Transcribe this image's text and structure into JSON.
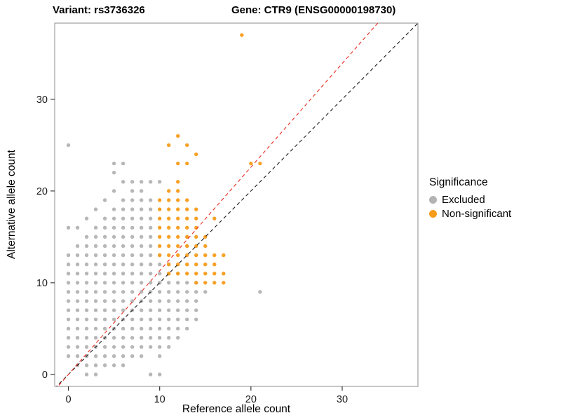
{
  "chart_data": {
    "type": "scatter",
    "title_left": "Variant: rs3736326",
    "title_right": "Gene: CTR9 (ENSG00000198730)",
    "xlabel": "Reference allele count",
    "ylabel": "Alternative allele count",
    "xlim": [
      -1.5,
      38.3
    ],
    "ylim": [
      -1.3,
      38.3
    ],
    "x_ticks": [
      0,
      10,
      20,
      30
    ],
    "y_ticks": [
      0,
      10,
      20,
      30
    ],
    "grid": false,
    "legend": {
      "title": "Significance",
      "position": "right"
    },
    "series": [
      {
        "name": "Excluded",
        "color": "#b3b3b3",
        "points": [
          [
            0,
            2
          ],
          [
            0,
            3
          ],
          [
            0,
            4
          ],
          [
            0,
            5
          ],
          [
            0,
            6
          ],
          [
            0,
            7
          ],
          [
            0,
            8
          ],
          [
            0,
            9
          ],
          [
            0,
            10
          ],
          [
            0,
            11
          ],
          [
            0,
            12
          ],
          [
            0,
            13
          ],
          [
            0,
            16
          ],
          [
            0,
            25
          ],
          [
            1,
            1
          ],
          [
            1,
            2
          ],
          [
            1,
            3
          ],
          [
            1,
            4
          ],
          [
            1,
            5
          ],
          [
            1,
            6
          ],
          [
            1,
            7
          ],
          [
            1,
            8
          ],
          [
            1,
            9
          ],
          [
            1,
            10
          ],
          [
            1,
            11
          ],
          [
            1,
            12
          ],
          [
            1,
            13
          ],
          [
            1,
            14
          ],
          [
            1,
            16
          ],
          [
            2,
            0
          ],
          [
            2,
            1
          ],
          [
            2,
            2
          ],
          [
            2,
            3
          ],
          [
            2,
            4
          ],
          [
            2,
            5
          ],
          [
            2,
            6
          ],
          [
            2,
            7
          ],
          [
            2,
            8
          ],
          [
            2,
            9
          ],
          [
            2,
            10
          ],
          [
            2,
            11
          ],
          [
            2,
            12
          ],
          [
            2,
            13
          ],
          [
            2,
            14
          ],
          [
            2,
            15
          ],
          [
            2,
            17
          ],
          [
            3,
            0
          ],
          [
            3,
            1
          ],
          [
            3,
            2
          ],
          [
            3,
            3
          ],
          [
            3,
            4
          ],
          [
            3,
            5
          ],
          [
            3,
            6
          ],
          [
            3,
            7
          ],
          [
            3,
            8
          ],
          [
            3,
            9
          ],
          [
            3,
            10
          ],
          [
            3,
            11
          ],
          [
            3,
            12
          ],
          [
            3,
            13
          ],
          [
            3,
            14
          ],
          [
            3,
            15
          ],
          [
            3,
            16
          ],
          [
            3,
            18
          ],
          [
            4,
            1
          ],
          [
            4,
            2
          ],
          [
            4,
            3
          ],
          [
            4,
            4
          ],
          [
            4,
            5
          ],
          [
            4,
            6
          ],
          [
            4,
            7
          ],
          [
            4,
            8
          ],
          [
            4,
            9
          ],
          [
            4,
            10
          ],
          [
            4,
            11
          ],
          [
            4,
            12
          ],
          [
            4,
            13
          ],
          [
            4,
            14
          ],
          [
            4,
            15
          ],
          [
            4,
            16
          ],
          [
            4,
            17
          ],
          [
            4,
            19
          ],
          [
            5,
            1
          ],
          [
            5,
            2
          ],
          [
            5,
            3
          ],
          [
            5,
            4
          ],
          [
            5,
            5
          ],
          [
            5,
            6
          ],
          [
            5,
            7
          ],
          [
            5,
            8
          ],
          [
            5,
            9
          ],
          [
            5,
            10
          ],
          [
            5,
            11
          ],
          [
            5,
            12
          ],
          [
            5,
            13
          ],
          [
            5,
            14
          ],
          [
            5,
            15
          ],
          [
            5,
            16
          ],
          [
            5,
            17
          ],
          [
            5,
            18
          ],
          [
            5,
            20
          ],
          [
            5,
            22
          ],
          [
            5,
            23
          ],
          [
            6,
            1
          ],
          [
            6,
            2
          ],
          [
            6,
            3
          ],
          [
            6,
            4
          ],
          [
            6,
            5
          ],
          [
            6,
            6
          ],
          [
            6,
            7
          ],
          [
            6,
            8
          ],
          [
            6,
            9
          ],
          [
            6,
            10
          ],
          [
            6,
            11
          ],
          [
            6,
            12
          ],
          [
            6,
            13
          ],
          [
            6,
            14
          ],
          [
            6,
            15
          ],
          [
            6,
            16
          ],
          [
            6,
            17
          ],
          [
            6,
            18
          ],
          [
            6,
            19
          ],
          [
            6,
            21
          ],
          [
            6,
            23
          ],
          [
            7,
            2
          ],
          [
            7,
            3
          ],
          [
            7,
            4
          ],
          [
            7,
            5
          ],
          [
            7,
            6
          ],
          [
            7,
            7
          ],
          [
            7,
            8
          ],
          [
            7,
            9
          ],
          [
            7,
            10
          ],
          [
            7,
            11
          ],
          [
            7,
            12
          ],
          [
            7,
            13
          ],
          [
            7,
            14
          ],
          [
            7,
            15
          ],
          [
            7,
            16
          ],
          [
            7,
            17
          ],
          [
            7,
            18
          ],
          [
            7,
            19
          ],
          [
            7,
            20
          ],
          [
            7,
            21
          ],
          [
            8,
            2
          ],
          [
            8,
            3
          ],
          [
            8,
            4
          ],
          [
            8,
            5
          ],
          [
            8,
            6
          ],
          [
            8,
            7
          ],
          [
            8,
            8
          ],
          [
            8,
            9
          ],
          [
            8,
            10
          ],
          [
            8,
            11
          ],
          [
            8,
            12
          ],
          [
            8,
            13
          ],
          [
            8,
            14
          ],
          [
            8,
            15
          ],
          [
            8,
            16
          ],
          [
            8,
            17
          ],
          [
            8,
            18
          ],
          [
            8,
            19
          ],
          [
            8,
            20
          ],
          [
            8,
            21
          ],
          [
            9,
            0
          ],
          [
            9,
            3
          ],
          [
            9,
            4
          ],
          [
            9,
            5
          ],
          [
            9,
            6
          ],
          [
            9,
            7
          ],
          [
            9,
            8
          ],
          [
            9,
            9
          ],
          [
            9,
            10
          ],
          [
            9,
            11
          ],
          [
            9,
            12
          ],
          [
            9,
            13
          ],
          [
            9,
            14
          ],
          [
            9,
            15
          ],
          [
            9,
            16
          ],
          [
            9,
            17
          ],
          [
            9,
            18
          ],
          [
            9,
            19
          ],
          [
            9,
            21
          ],
          [
            10,
            0
          ],
          [
            10,
            2
          ],
          [
            10,
            3
          ],
          [
            10,
            4
          ],
          [
            10,
            5
          ],
          [
            10,
            6
          ],
          [
            10,
            7
          ],
          [
            10,
            8
          ],
          [
            10,
            9
          ],
          [
            10,
            10
          ],
          [
            10,
            11
          ],
          [
            10,
            12
          ],
          [
            10,
            13
          ],
          [
            10,
            21
          ],
          [
            11,
            3
          ],
          [
            11,
            4
          ],
          [
            11,
            5
          ],
          [
            11,
            6
          ],
          [
            11,
            7
          ],
          [
            11,
            8
          ],
          [
            11,
            9
          ],
          [
            11,
            10
          ],
          [
            11,
            11
          ],
          [
            11,
            12
          ],
          [
            12,
            4
          ],
          [
            12,
            5
          ],
          [
            12,
            6
          ],
          [
            12,
            7
          ],
          [
            12,
            8
          ],
          [
            12,
            9
          ],
          [
            12,
            10
          ],
          [
            12,
            11
          ],
          [
            13,
            5
          ],
          [
            13,
            6
          ],
          [
            13,
            7
          ],
          [
            13,
            8
          ],
          [
            13,
            9
          ],
          [
            13,
            10
          ],
          [
            13,
            14
          ],
          [
            13,
            15
          ],
          [
            14,
            6
          ],
          [
            14,
            7
          ],
          [
            14,
            8
          ],
          [
            14,
            9
          ],
          [
            14,
            10
          ],
          [
            15,
            9
          ],
          [
            21,
            9
          ]
        ]
      },
      {
        "name": "Non-significant",
        "color": "#f79c1b",
        "points": [
          [
            19,
            37
          ],
          [
            11,
            25
          ],
          [
            12,
            26
          ],
          [
            13,
            25
          ],
          [
            14,
            24
          ],
          [
            12,
            23
          ],
          [
            13,
            23
          ],
          [
            20,
            23
          ],
          [
            21,
            23
          ],
          [
            12,
            21
          ],
          [
            11,
            20
          ],
          [
            12,
            20
          ],
          [
            10,
            19
          ],
          [
            11,
            19
          ],
          [
            12,
            19
          ],
          [
            13,
            19
          ],
          [
            10,
            18
          ],
          [
            11,
            18
          ],
          [
            12,
            18
          ],
          [
            13,
            18
          ],
          [
            14,
            18
          ],
          [
            10,
            17
          ],
          [
            11,
            17
          ],
          [
            12,
            17
          ],
          [
            13,
            17
          ],
          [
            14,
            17
          ],
          [
            16,
            17
          ],
          [
            10,
            16
          ],
          [
            11,
            16
          ],
          [
            12,
            16
          ],
          [
            13,
            16
          ],
          [
            14,
            16
          ],
          [
            10,
            15
          ],
          [
            11,
            15
          ],
          [
            12,
            15
          ],
          [
            13,
            15
          ],
          [
            14,
            15
          ],
          [
            15,
            15
          ],
          [
            10,
            14
          ],
          [
            11,
            14
          ],
          [
            12,
            14
          ],
          [
            13,
            14
          ],
          [
            14,
            14
          ],
          [
            15,
            14
          ],
          [
            10,
            13
          ],
          [
            11,
            13
          ],
          [
            12,
            13
          ],
          [
            13,
            13
          ],
          [
            14,
            13
          ],
          [
            15,
            13
          ],
          [
            16,
            13
          ],
          [
            17,
            13
          ],
          [
            11,
            12
          ],
          [
            12,
            12
          ],
          [
            13,
            12
          ],
          [
            14,
            12
          ],
          [
            15,
            12
          ],
          [
            16,
            12
          ],
          [
            11,
            11
          ],
          [
            12,
            11
          ],
          [
            13,
            11
          ],
          [
            14,
            11
          ],
          [
            15,
            11
          ],
          [
            16,
            11
          ],
          [
            17,
            11
          ],
          [
            14,
            10
          ],
          [
            15,
            10
          ],
          [
            16,
            10
          ],
          [
            17,
            10
          ]
        ]
      }
    ],
    "lines": [
      {
        "name": "identity",
        "color": "#1a1a1a",
        "dashed": true,
        "slope": 1.0,
        "intercept": 0
      },
      {
        "name": "expected-ratio",
        "color": "#e8291f",
        "dashed": true,
        "slope": 1.13,
        "intercept": 0
      }
    ]
  }
}
